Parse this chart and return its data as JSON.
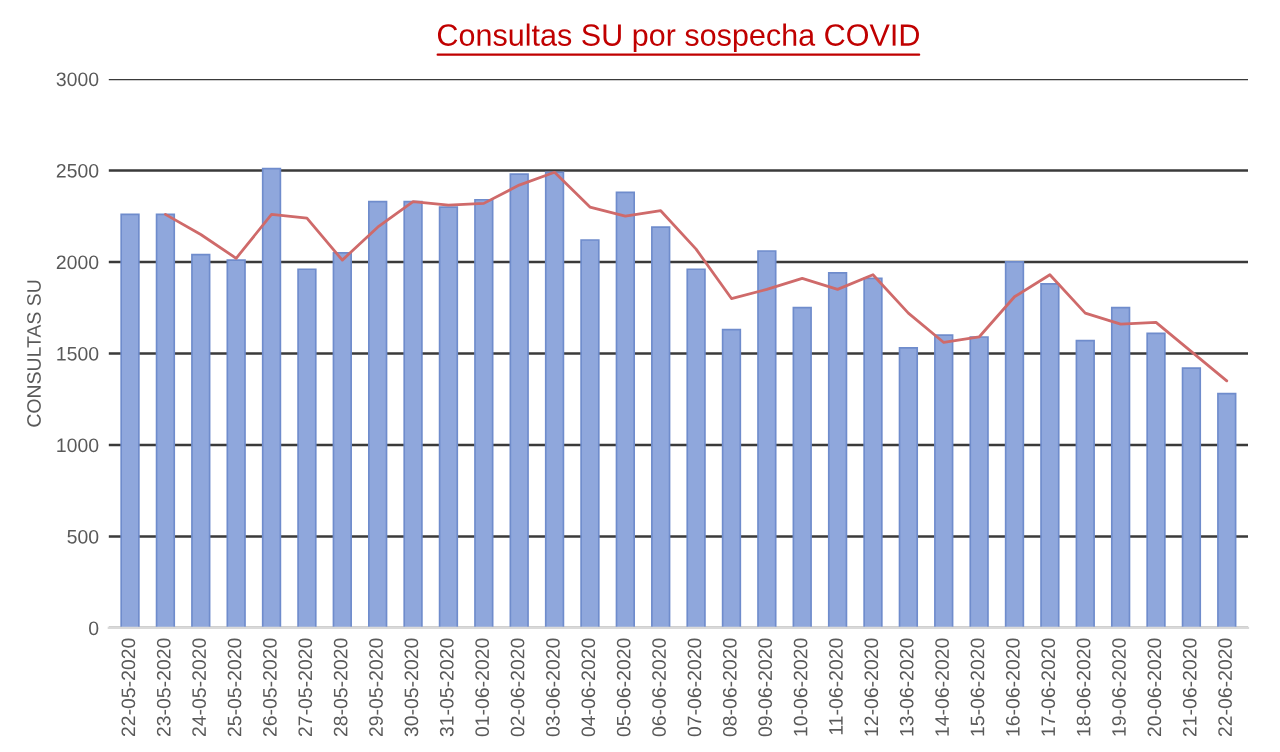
{
  "chart_data": {
    "type": "bar",
    "title": "Consultas SU por sospecha COVID",
    "ylabel": "CONSULTAS SU",
    "categories": [
      "22-05-2020",
      "23-05-2020",
      "24-05-2020",
      "25-05-2020",
      "26-05-2020",
      "27-05-2020",
      "28-05-2020",
      "29-05-2020",
      "30-05-2020",
      "31-05-2020",
      "01-06-2020",
      "02-06-2020",
      "03-06-2020",
      "04-06-2020",
      "05-06-2020",
      "06-06-2020",
      "07-06-2020",
      "08-06-2020",
      "09-06-2020",
      "10-06-2020",
      "11-06-2020",
      "12-06-2020",
      "13-06-2020",
      "14-06-2020",
      "15-06-2020",
      "16-06-2020",
      "17-06-2020",
      "18-06-2020",
      "19-06-2020",
      "20-06-2020",
      "21-06-2020",
      "22-06-2020"
    ],
    "series": [
      {
        "color": "#8fa7dc",
        "values": [
          2260,
          2260,
          2040,
          2010,
          2510,
          1960,
          2050,
          2330,
          2330,
          2300,
          2340,
          2480,
          2490,
          2120,
          2380,
          2190,
          1960,
          1630,
          2060,
          1750,
          1940,
          1910,
          1530,
          1600,
          1590,
          2000,
          1880,
          1570,
          1750,
          1610,
          1420,
          1280
        ]
      },
      {
        "type": "line",
        "color": "#cf6a6a",
        "values": [
          null,
          2260,
          2150,
          2020,
          2260,
          2240,
          2010,
          2190,
          2330,
          2310,
          2320,
          2420,
          2490,
          2300,
          2250,
          2280,
          2070,
          1800,
          1850,
          1910,
          1850,
          1930,
          1720,
          1560,
          1590,
          1810,
          1930,
          1720,
          1660,
          1670,
          1510,
          1350
        ]
      }
    ],
    "ylim": [
      0,
      3000
    ],
    "yticks": [
      0,
      500,
      1000,
      1500,
      2000,
      2500,
      3000
    ],
    "grid": "y",
    "legend": false
  }
}
